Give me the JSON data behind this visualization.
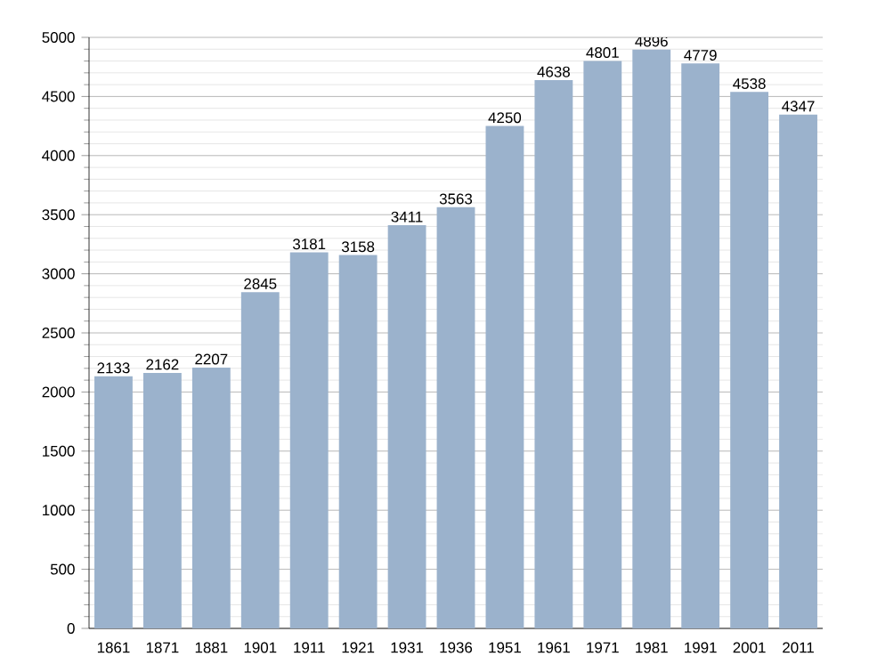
{
  "chart_data": {
    "type": "bar",
    "categories": [
      "1861",
      "1871",
      "1881",
      "1901",
      "1911",
      "1921",
      "1931",
      "1936",
      "1951",
      "1961",
      "1971",
      "1981",
      "1991",
      "2001",
      "2011"
    ],
    "values": [
      2133,
      2162,
      2207,
      2845,
      3181,
      3158,
      3411,
      3563,
      4250,
      4638,
      4801,
      4896,
      4779,
      4538,
      4347
    ],
    "color": "#9bb2cc",
    "data_labels": true,
    "grid": "y",
    "ylim": [
      0,
      5000
    ],
    "yticks": [
      0,
      500,
      1000,
      1500,
      2000,
      2500,
      3000,
      3500,
      4000,
      4500,
      5000
    ]
  }
}
